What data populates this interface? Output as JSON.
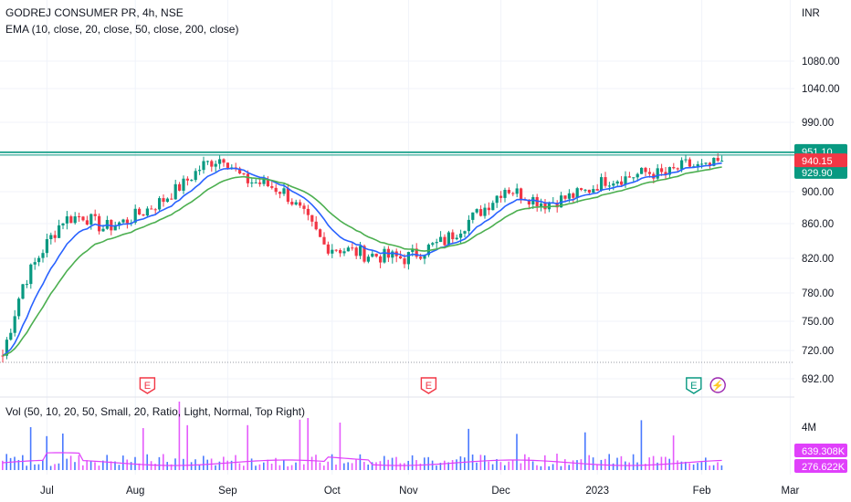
{
  "header": {
    "symbol_line": "GODREJ CONSUMER PR, 4h, NSE",
    "ema_line": "EMA (10, close, 20, close, 50, close, 200, close)",
    "vol_line": "Vol (50, 10, 20, 50, Small, 20, Ratio, Light, Normal, Top Right)"
  },
  "colors": {
    "up": "#089981",
    "down": "#f23645",
    "ema10": "#2962ff",
    "ema20": "#4caf50",
    "resistance": "#089981",
    "vol_up": "#2962ff",
    "vol_down": "#e040fb",
    "vol_ma": "#e040fb"
  },
  "price_axis": {
    "currency": "INR",
    "ticks": [
      "1080.00",
      "1040.00",
      "990.00",
      "900.00",
      "860.00",
      "820.00",
      "780.00",
      "750.00",
      "720.00",
      "692.00"
    ],
    "tick_values": [
      1080,
      1040,
      990,
      900,
      860,
      820,
      780,
      750,
      720,
      692
    ],
    "ylim": [
      690,
      1120
    ]
  },
  "volume_axis": {
    "tick": "4M"
  },
  "time_axis": {
    "labels": [
      "Jul",
      "Aug",
      "Sep",
      "Oct",
      "Nov",
      "Dec",
      "2023",
      "Feb",
      "Mar"
    ],
    "bar_index": [
      11,
      33,
      56,
      82,
      101,
      124,
      148,
      174,
      196
    ]
  },
  "tags": {
    "resistance": "951.10",
    "last_price": "940.15",
    "ema_value": "929.90",
    "vol_value": "639.308K",
    "vol_ma_value": "276.622K"
  },
  "events": [
    {
      "type": "earnings",
      "symbol": "E",
      "bar": 36
    },
    {
      "type": "earnings",
      "symbol": "E",
      "bar": 106
    },
    {
      "type": "earnings",
      "symbol": "E",
      "bar": 172
    },
    {
      "type": "split",
      "symbol": "⚡",
      "bar": 178
    }
  ],
  "chart_data": {
    "type": "candlestick",
    "title": "GODREJ CONSUMER PR, 4h, NSE",
    "ylabel": "INR",
    "resistance_level": 951.1,
    "last_price": 940.15,
    "ylim": [
      690,
      1120
    ],
    "close_path_bars": [
      0,
      5,
      10,
      15,
      20,
      25,
      30,
      35,
      40,
      45,
      50,
      55,
      60,
      65,
      70,
      75,
      80,
      85,
      90,
      95,
      100,
      105,
      110,
      115,
      120,
      125,
      130,
      135,
      140,
      145,
      150,
      155,
      160,
      165,
      170,
      175,
      179
    ],
    "close_path_values": [
      715,
      790,
      830,
      865,
      870,
      855,
      862,
      875,
      890,
      910,
      935,
      945,
      915,
      910,
      900,
      870,
      835,
      830,
      825,
      822,
      820,
      830,
      840,
      860,
      880,
      905,
      895,
      885,
      892,
      900,
      915,
      918,
      925,
      922,
      935,
      930,
      940.15
    ],
    "ema_periods": [
      10,
      20,
      50,
      200
    ],
    "volume_ma": 276622,
    "volume_last": 639308
  }
}
